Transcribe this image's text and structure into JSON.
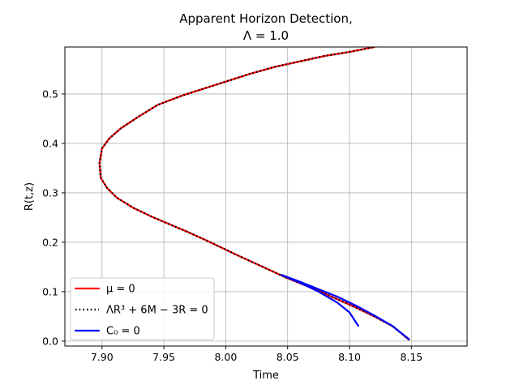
{
  "chart_data": {
    "type": "line",
    "title": "Apparent Horizon Detection,",
    "subtitle": "Λ = 1.0",
    "xlabel": "Time",
    "ylabel": "R(t,z)",
    "xlim": [
      7.87,
      8.195
    ],
    "ylim": [
      -0.01,
      0.595
    ],
    "xticks": [
      7.9,
      7.95,
      8.0,
      8.05,
      8.1,
      8.15
    ],
    "xtick_labels": [
      "7.90",
      "7.95",
      "8.00",
      "8.05",
      "8.10",
      "8.15"
    ],
    "yticks": [
      0.0,
      0.1,
      0.2,
      0.3,
      0.4,
      0.5
    ],
    "ytick_labels": [
      "0.0",
      "0.1",
      "0.2",
      "0.3",
      "0.4",
      "0.5"
    ],
    "grid": true,
    "legend_position": "lower-left",
    "series": [
      {
        "name": "μ = 0",
        "color": "#ff0000",
        "style": "solid",
        "x": [
          8.148,
          8.135,
          8.12,
          8.105,
          8.09,
          8.07,
          8.05,
          8.03,
          8.01,
          8.0,
          7.985,
          7.97,
          7.955,
          7.94,
          7.925,
          7.912,
          7.904,
          7.899,
          7.898,
          7.9,
          7.906,
          7.915,
          7.93,
          7.945,
          7.965,
          7.985,
          8.0,
          8.02,
          8.04,
          8.06,
          8.08,
          8.1,
          8.12
        ],
        "y": [
          0.003,
          0.03,
          0.05,
          0.068,
          0.085,
          0.107,
          0.127,
          0.15,
          0.173,
          0.185,
          0.203,
          0.22,
          0.236,
          0.252,
          0.27,
          0.29,
          0.31,
          0.33,
          0.36,
          0.39,
          0.41,
          0.43,
          0.455,
          0.478,
          0.497,
          0.513,
          0.525,
          0.541,
          0.555,
          0.566,
          0.577,
          0.585,
          0.595
        ]
      },
      {
        "name": "ΛR³ + 6M − 3R = 0",
        "color": "#000000",
        "style": "dotted",
        "x": [
          8.148,
          8.135,
          8.12,
          8.105,
          8.09,
          8.07,
          8.05,
          8.03,
          8.01,
          8.0,
          7.985,
          7.97,
          7.955,
          7.94,
          7.925,
          7.912,
          7.904,
          7.899,
          7.898,
          7.9,
          7.906,
          7.915,
          7.93,
          7.945,
          7.965,
          7.985,
          8.0,
          8.02,
          8.04,
          8.06,
          8.08,
          8.1,
          8.12
        ],
        "y": [
          0.003,
          0.03,
          0.05,
          0.068,
          0.085,
          0.107,
          0.127,
          0.15,
          0.173,
          0.185,
          0.203,
          0.22,
          0.236,
          0.252,
          0.27,
          0.29,
          0.31,
          0.33,
          0.36,
          0.39,
          0.41,
          0.43,
          0.455,
          0.478,
          0.497,
          0.513,
          0.525,
          0.541,
          0.555,
          0.566,
          0.577,
          0.585,
          0.595
        ]
      },
      {
        "name": "C₀ = 0",
        "color": "#0000ff",
        "style": "solid",
        "segments": [
          {
            "x": [
              8.045,
              8.06,
              8.075,
              8.09,
              8.105,
              8.12,
              8.135,
              8.148
            ],
            "y": [
              0.134,
              0.12,
              0.105,
              0.09,
              0.072,
              0.052,
              0.03,
              0.004
            ]
          },
          {
            "x": [
              8.045,
              8.06,
              8.075,
              8.09,
              8.1,
              8.107
            ],
            "y": [
              0.134,
              0.118,
              0.1,
              0.078,
              0.058,
              0.031
            ]
          }
        ]
      }
    ]
  }
}
